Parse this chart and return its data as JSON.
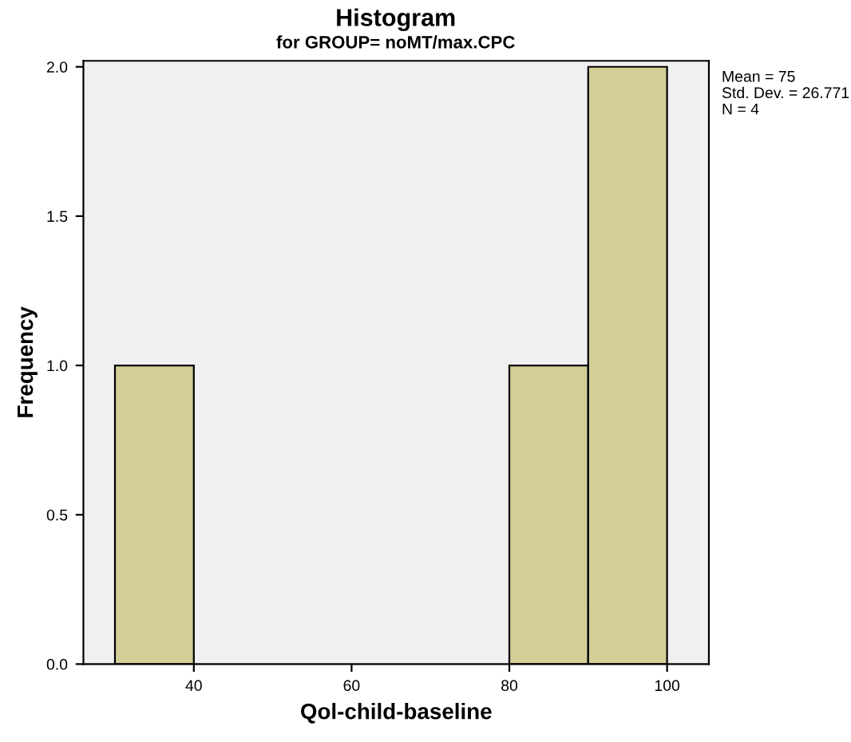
{
  "chart_data": {
    "type": "histogram",
    "title": "Histogram",
    "subtitle": "for GROUP= noMT/max.CPC",
    "xlabel": "Qol-child-baseline",
    "ylabel": "Frequency",
    "bins": [
      30,
      40,
      50,
      60,
      70,
      80,
      90,
      100
    ],
    "values": [
      1,
      0,
      0,
      0,
      0,
      1,
      2
    ],
    "color": "#d3ce97",
    "xlim": [
      26,
      105.3
    ],
    "xticks": [
      40,
      60,
      80,
      100
    ],
    "ylim": [
      0,
      2.02
    ],
    "yticks": [
      {
        "value": 0,
        "label": "0.0"
      },
      {
        "value": 0.5,
        "label": "0.5"
      },
      {
        "value": 1,
        "label": "1.0"
      },
      {
        "value": 1.5,
        "label": "1.5"
      },
      {
        "value": 2,
        "label": "2.0"
      }
    ],
    "annotations": [
      "Mean = 75",
      "Std. Dev. = 26.771",
      "N = 4"
    ],
    "grid": false,
    "legend": false
  }
}
